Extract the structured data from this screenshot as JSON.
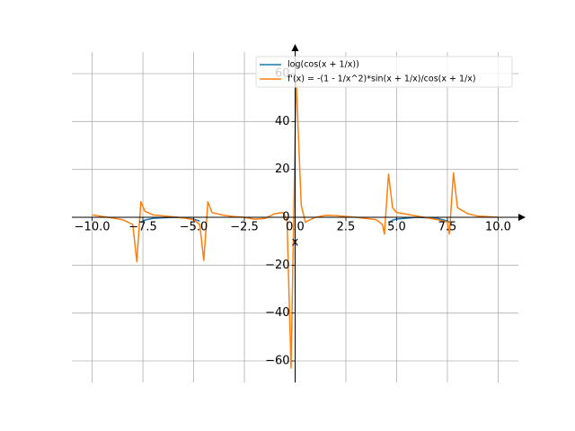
{
  "chart_data": {
    "type": "line",
    "x_label": "x",
    "x": [
      -10,
      -9,
      -8.5,
      -8,
      -7.8,
      -7.6,
      -7.4,
      -7,
      -6,
      -5.5,
      -5,
      -4.7,
      -4.5,
      -4.3,
      -4.1,
      -3.5,
      -3,
      -2.5,
      -2,
      -1.5,
      -1,
      -0.6,
      -0.4,
      -0.2,
      0.05,
      0.3,
      0.5,
      1,
      1.5,
      2,
      3,
      4,
      4.3,
      4.4,
      4.6,
      4.8,
      5,
      6,
      7,
      7.5,
      7.6,
      7.8,
      8,
      8.5,
      9,
      10
    ],
    "series": [
      {
        "name": "log(cos(x + 1/x))",
        "color": "#1f77b4",
        "values": [
          null,
          null,
          null,
          null,
          null,
          -2.1,
          -1.16,
          -0.43,
          -0.007,
          -0.19,
          -0.76,
          -1.6,
          null,
          null,
          null,
          null,
          null,
          null,
          null,
          null,
          null,
          null,
          null,
          null,
          null,
          null,
          null,
          null,
          null,
          null,
          null,
          null,
          null,
          null,
          -2.26,
          -1.23,
          -0.76,
          -0.007,
          -0.43,
          -1.52,
          -2.1,
          null,
          null,
          null,
          null,
          null
        ]
      },
      {
        "name": "f'(x) = -(1 - 1/x^2)*sin(x + 1/x)/cos(x + 1/x)",
        "color": "#ff7f0e",
        "values": [
          1,
          -0.3,
          -1,
          -3,
          -18.5,
          6.5,
          2.5,
          1,
          0.2,
          -0.3,
          -1,
          -3,
          -18,
          6.5,
          2,
          0.8,
          0.3,
          0,
          -0.8,
          -0.5,
          1.5,
          2,
          -1,
          -63,
          58,
          5,
          -2,
          0,
          0.8,
          0.7,
          0,
          -1,
          -3,
          -7,
          18,
          4,
          2,
          0.5,
          -1,
          -2,
          -7,
          18.5,
          4,
          1.5,
          0.5,
          0
        ]
      }
    ],
    "xlim": [
      -11,
      11
    ],
    "ylim": [
      -69,
      69
    ],
    "xticks": [
      {
        "value": -10,
        "label": "−10.0"
      },
      {
        "value": -7.5,
        "label": "−7.5"
      },
      {
        "value": -5,
        "label": "−5.0"
      },
      {
        "value": -2.5,
        "label": "−2.5"
      },
      {
        "value": 0,
        "label": "0.0"
      },
      {
        "value": 2.5,
        "label": "2.5"
      },
      {
        "value": 5,
        "label": "5.0"
      },
      {
        "value": 7.5,
        "label": "7.5"
      },
      {
        "value": 10,
        "label": "10.0"
      }
    ],
    "yticks": [
      {
        "value": -60,
        "label": "−60"
      },
      {
        "value": -40,
        "label": "−40"
      },
      {
        "value": -20,
        "label": "−20"
      },
      0,
      20,
      40,
      60
    ],
    "grid": true,
    "legend": "upper right"
  }
}
